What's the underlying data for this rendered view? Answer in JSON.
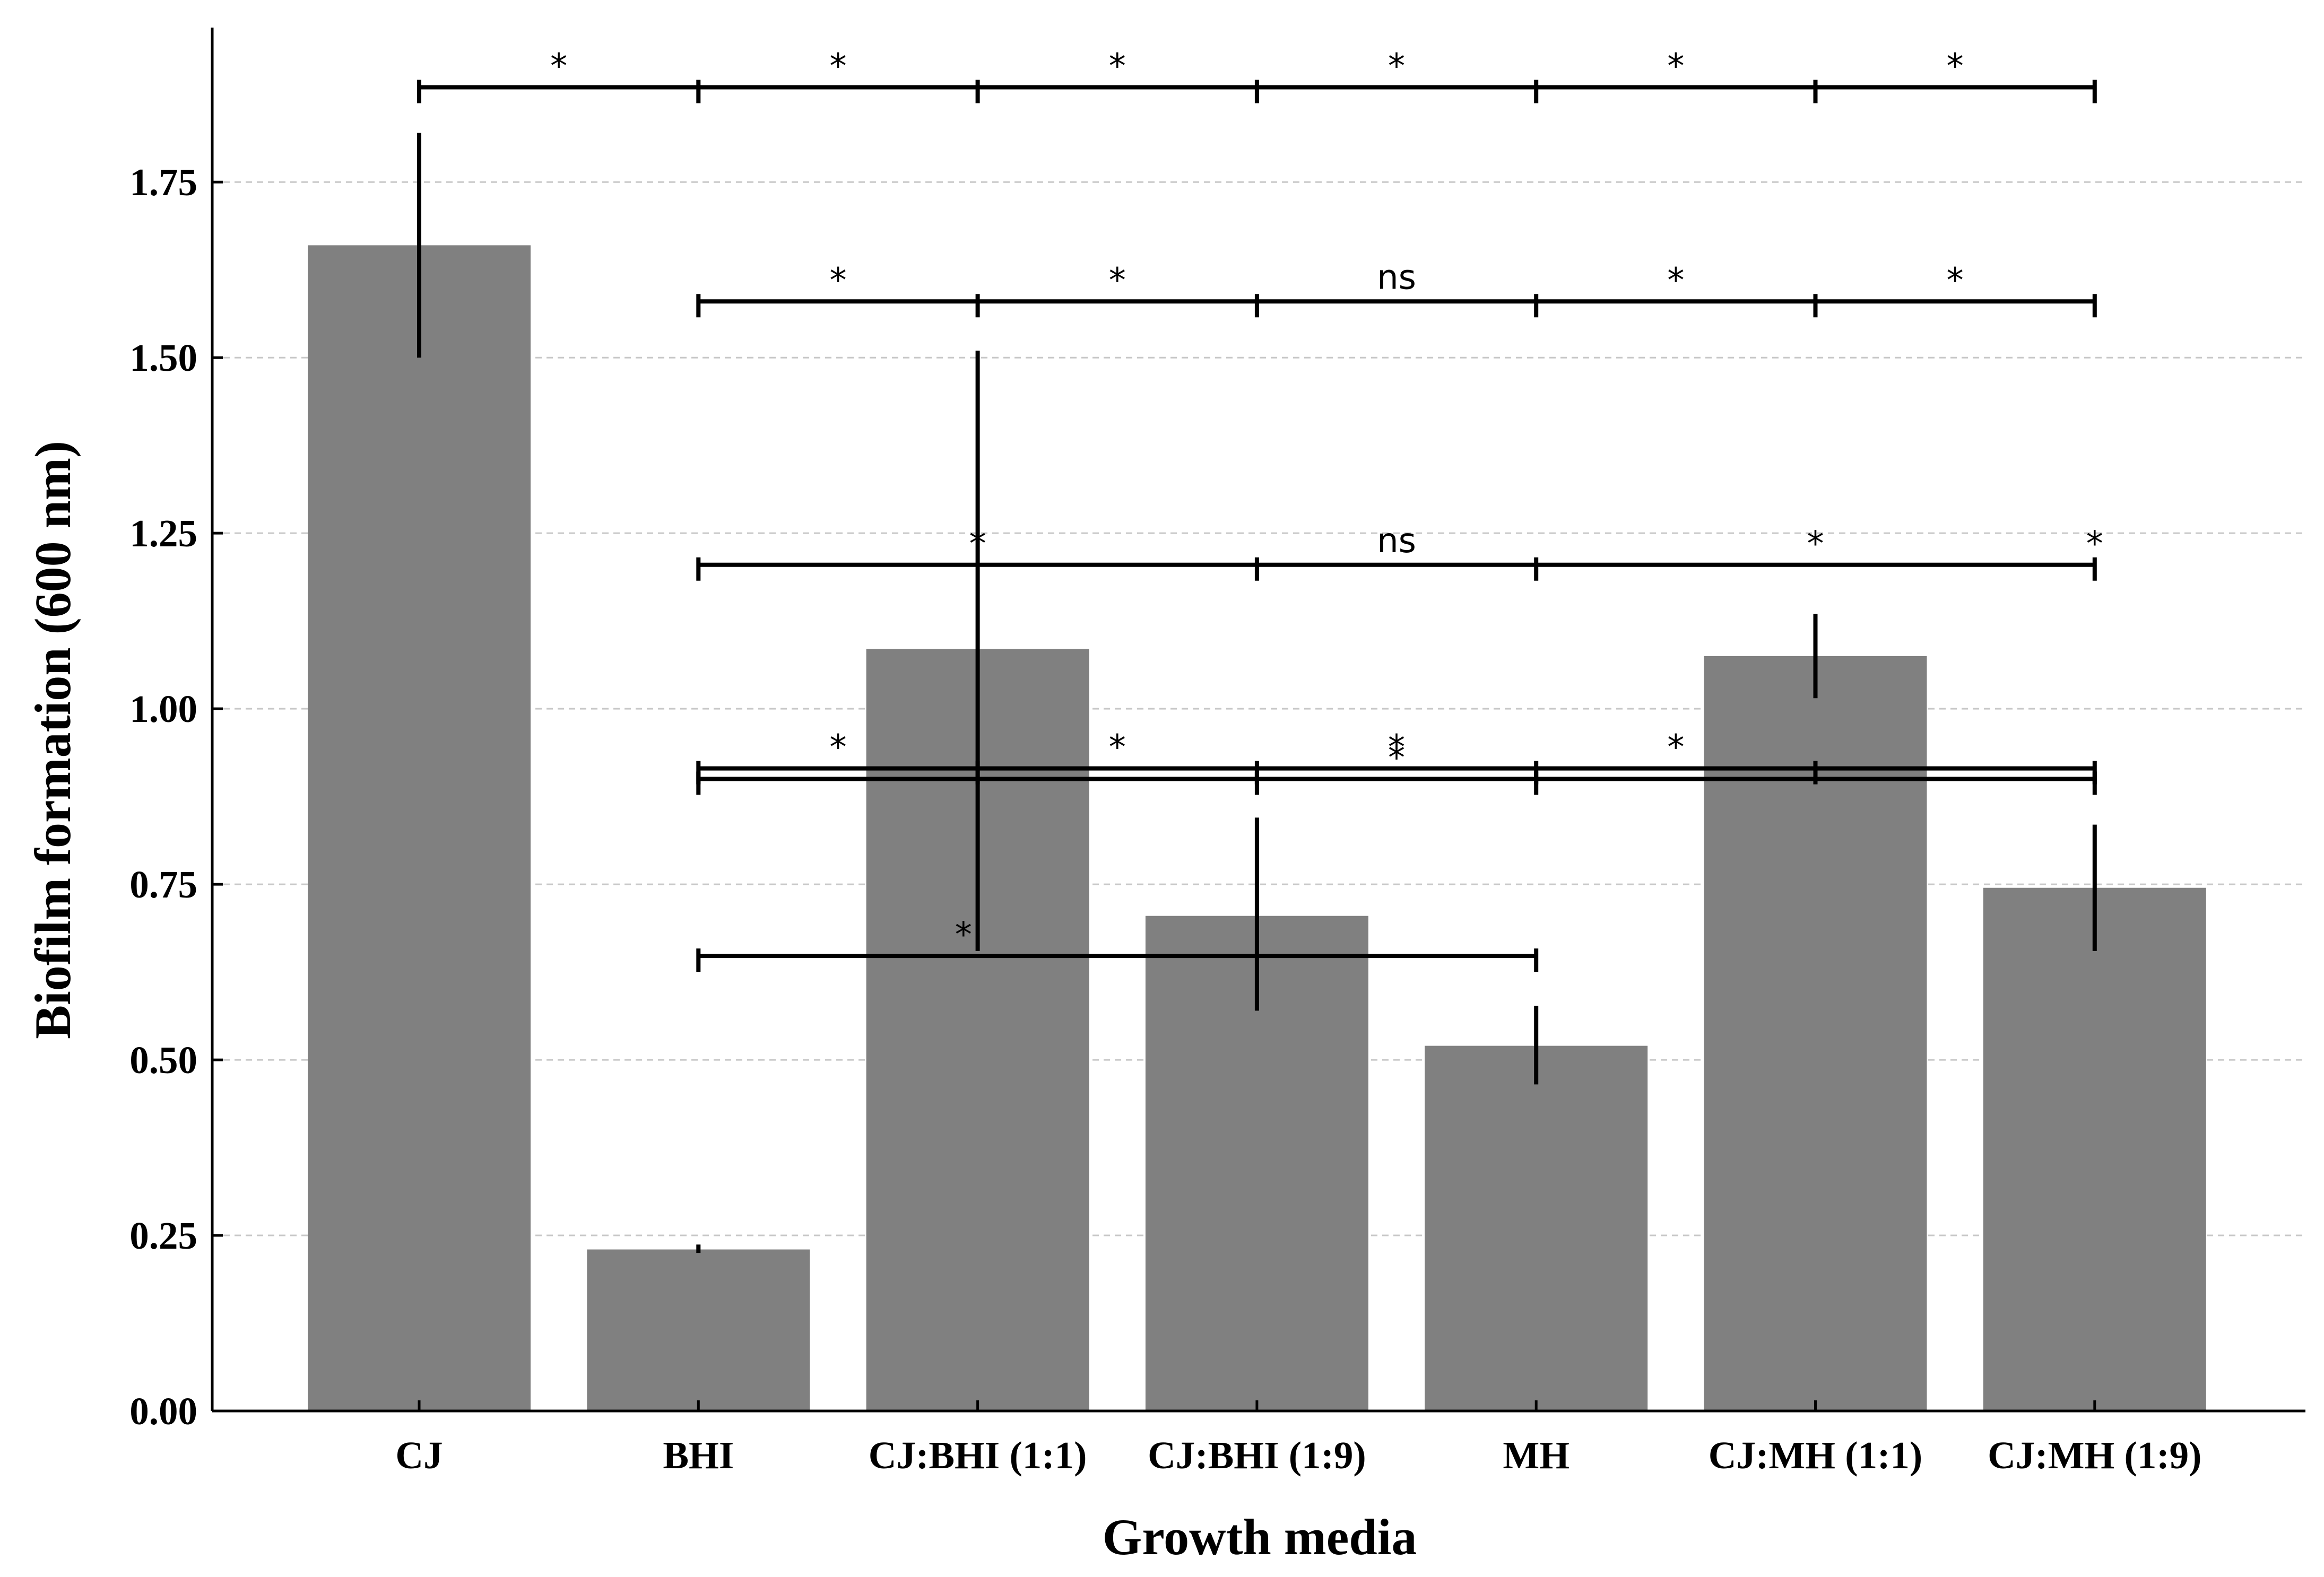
{
  "chart_data": {
    "type": "bar",
    "title": "",
    "xlabel": "Growth media",
    "ylabel": "Biofilm formation (600 nm)",
    "categories": [
      "CJ",
      "BHI",
      "CJ:BHI (1:1)",
      "CJ:BHI (1:9)",
      "MH",
      "CJ:MH (1:1)",
      "CJ:MH (1:9)"
    ],
    "values": [
      1.66,
      0.23,
      1.085,
      0.705,
      0.52,
      1.075,
      0.745
    ],
    "error_low": [
      1.5,
      0.225,
      0.655,
      0.57,
      0.465,
      1.015,
      0.655
    ],
    "error_high": [
      1.82,
      0.237,
      1.51,
      0.845,
      0.577,
      1.135,
      0.835
    ],
    "ylim": [
      0,
      1.97
    ],
    "yticks": [
      "0.00",
      "0.25",
      "0.50",
      "0.75",
      "1.00",
      "1.25",
      "1.50",
      "1.75"
    ],
    "ytick_values": [
      0,
      0.25,
      0.5,
      0.75,
      1.0,
      1.25,
      1.5,
      1.75
    ],
    "grid": "horizontal dashed",
    "bar_color": "#808080",
    "significance_brackets": [
      {
        "y": 1.885,
        "from": 0,
        "to": 6,
        "ticks": [
          0,
          1,
          2,
          3,
          4,
          5,
          6
        ],
        "labels": [
          "*",
          "*",
          "*",
          "*",
          "*",
          "*"
        ]
      },
      {
        "y": 1.58,
        "from": 1,
        "to": 6,
        "ticks": [
          1,
          2,
          3,
          4,
          5,
          6
        ],
        "labels": [
          "*",
          "*",
          "ns",
          "*",
          "*"
        ]
      },
      {
        "y": 1.205,
        "from": 1,
        "to": 6,
        "ticks": [
          1,
          3,
          4,
          6
        ],
        "labels": [
          "*",
          "ns",
          "*",
          "*"
        ]
      },
      {
        "y": 0.915,
        "from": 1,
        "to": 6,
        "ticks": [
          1,
          2,
          3,
          4,
          5,
          6
        ],
        "labels": [
          "*",
          "*",
          "*",
          "*"
        ]
      },
      {
        "y": 0.9,
        "from": 1,
        "to": 6,
        "ticks": [
          1,
          3,
          4,
          6
        ],
        "labels": [
          "*"
        ]
      },
      {
        "y": 0.648,
        "from": 1,
        "to": 4,
        "ticks": [
          1,
          4
        ],
        "labels": [
          "*"
        ]
      }
    ]
  }
}
